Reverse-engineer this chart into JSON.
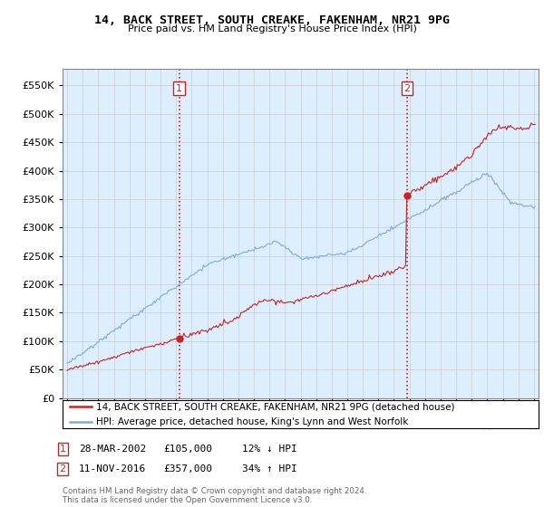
{
  "title": "14, BACK STREET, SOUTH CREAKE, FAKENHAM, NR21 9PG",
  "subtitle": "Price paid vs. HM Land Registry's House Price Index (HPI)",
  "legend_line1": "14, BACK STREET, SOUTH CREAKE, FAKENHAM, NR21 9PG (detached house)",
  "legend_line2": "HPI: Average price, detached house, King's Lynn and West Norfolk",
  "transaction1_date": "28-MAR-2002",
  "transaction1_price": "£105,000",
  "transaction1_hpi": "12% ↓ HPI",
  "transaction2_date": "11-NOV-2016",
  "transaction2_price": "£357,000",
  "transaction2_hpi": "34% ↑ HPI",
  "footnote": "Contains HM Land Registry data © Crown copyright and database right 2024.\nThis data is licensed under the Open Government Licence v3.0.",
  "hpi_color": "#7aaddc",
  "price_color": "#cc2222",
  "dashed_line_color": "#cc2222",
  "bg_color": "#ddeeff",
  "grid_color": "#cccccc",
  "ylim": [
    0,
    580000
  ],
  "yticks": [
    0,
    50000,
    100000,
    150000,
    200000,
    250000,
    300000,
    350000,
    400000,
    450000,
    500000,
    550000
  ],
  "transaction1_year": 2002.2,
  "transaction1_value": 105000,
  "transaction2_year": 2016.85,
  "transaction2_value": 357000,
  "xlim_left": 1994.7,
  "xlim_right": 2025.3
}
